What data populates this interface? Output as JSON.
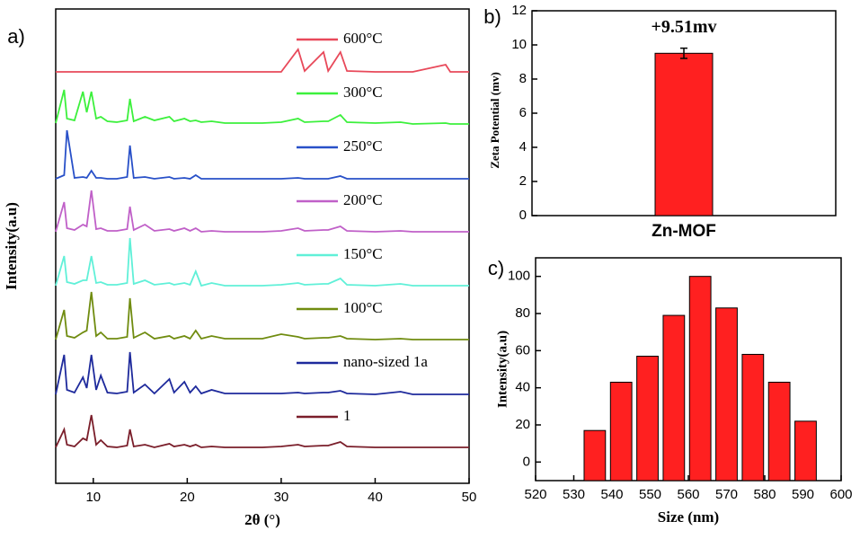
{
  "chart_data": [
    {
      "type": "line",
      "panel_label": "a)",
      "xlabel": "2θ (°)",
      "ylabel": "Intensity(a.u)",
      "xlim": [
        6,
        50
      ],
      "xticks": [
        10,
        20,
        30,
        40,
        50
      ],
      "x": [
        6,
        6.9,
        7.2,
        8,
        8.9,
        9.3,
        9.8,
        10.3,
        10.8,
        11.5,
        12.5,
        13.6,
        13.9,
        14.3,
        15.5,
        16.5,
        18.1,
        18.6,
        19.7,
        20.3,
        20.9,
        21.5,
        22.6,
        24,
        26,
        28,
        30,
        31.8,
        32.5,
        34.5,
        35,
        36.3,
        37,
        40,
        42.7,
        44,
        47.5,
        48,
        50
      ],
      "series": [
        {
          "name": "600°C",
          "color": "#e8495a",
          "values": [
            0,
            0,
            0,
            0,
            0,
            0,
            0,
            0,
            0,
            0,
            0,
            0,
            0,
            0,
            0,
            0,
            0,
            0,
            0,
            0,
            0,
            0,
            0,
            0,
            0,
            0,
            0,
            25,
            1,
            22,
            1,
            22,
            1,
            0,
            0,
            0,
            8,
            0,
            0
          ]
        },
        {
          "name": "300°C",
          "color": "#3cf03c",
          "values": [
            3,
            40,
            8,
            6,
            38,
            15,
            38,
            8,
            10,
            5,
            4,
            6,
            30,
            5,
            10,
            6,
            10,
            5,
            8,
            5,
            6,
            4,
            5,
            3,
            3,
            3,
            4,
            8,
            4,
            5,
            5,
            12,
            4,
            3,
            4,
            2,
            3,
            2,
            2
          ]
        },
        {
          "name": "250°C",
          "color": "#2850c8",
          "values": [
            1,
            5,
            55,
            2,
            3,
            2,
            10,
            2,
            2,
            1,
            1,
            3,
            38,
            2,
            3,
            1,
            3,
            1,
            2,
            1,
            5,
            1,
            1,
            1,
            1,
            1,
            1,
            2,
            1,
            1,
            1,
            4,
            1,
            1,
            1,
            1,
            1,
            1,
            1
          ]
        },
        {
          "name": "200°C",
          "color": "#c060c8",
          "values": [
            2,
            35,
            6,
            4,
            10,
            8,
            48,
            5,
            6,
            3,
            3,
            5,
            30,
            4,
            10,
            3,
            5,
            3,
            6,
            3,
            6,
            2,
            3,
            2,
            2,
            2,
            3,
            6,
            3,
            4,
            4,
            8,
            3,
            2,
            3,
            2,
            2,
            2,
            2
          ]
        },
        {
          "name": "150°C",
          "color": "#60f0d8",
          "values": [
            2,
            35,
            6,
            4,
            8,
            8,
            35,
            5,
            6,
            3,
            3,
            5,
            55,
            4,
            8,
            3,
            5,
            3,
            5,
            3,
            18,
            2,
            5,
            2,
            2,
            2,
            3,
            5,
            3,
            4,
            4,
            10,
            3,
            2,
            4,
            2,
            2,
            2,
            2
          ]
        },
        {
          "name": "100°C",
          "color": "#708c10",
          "values": [
            2,
            35,
            6,
            4,
            10,
            12,
            55,
            6,
            10,
            3,
            3,
            5,
            48,
            4,
            10,
            3,
            6,
            3,
            6,
            3,
            12,
            3,
            6,
            3,
            3,
            3,
            8,
            5,
            3,
            4,
            4,
            6,
            3,
            2,
            3,
            2,
            2,
            2,
            2
          ]
        },
        {
          "name": "nano-sized 1a",
          "color": "#1e2a9c",
          "values": [
            1,
            45,
            6,
            3,
            20,
            8,
            45,
            6,
            22,
            3,
            2,
            4,
            48,
            3,
            12,
            2,
            18,
            3,
            15,
            3,
            10,
            2,
            6,
            2,
            2,
            2,
            2,
            3,
            2,
            3,
            3,
            5,
            2,
            1,
            4,
            1,
            1,
            1,
            1
          ]
        },
        {
          "name": "1",
          "color": "#7a1e2a",
          "values": [
            2,
            22,
            5,
            3,
            12,
            10,
            38,
            5,
            10,
            3,
            2,
            4,
            22,
            3,
            5,
            2,
            6,
            3,
            5,
            3,
            5,
            2,
            3,
            2,
            2,
            2,
            3,
            5,
            3,
            4,
            4,
            8,
            3,
            2,
            2,
            2,
            2,
            2,
            2
          ]
        }
      ]
    },
    {
      "type": "bar",
      "panel_label": "b)",
      "ylabel": "Zeta Potential (mv)",
      "categories": [
        "Zn-MOF"
      ],
      "values": [
        9.51
      ],
      "value_labels": [
        "+9.51mv"
      ],
      "errors": [
        0.3
      ],
      "color": "#ff2020",
      "ylim": [
        0,
        12
      ],
      "yticks": [
        0,
        2,
        4,
        6,
        8,
        10,
        12
      ]
    },
    {
      "type": "histbar",
      "panel_label": "c)",
      "xlabel": "Size (nm)",
      "ylabel": "Intensity(a.u)",
      "x": [
        535.5,
        542.4,
        549.3,
        556.2,
        563.1,
        570,
        576.9,
        583.8,
        590.7
      ],
      "values": [
        17,
        43,
        57,
        79,
        100,
        83,
        58,
        43,
        22
      ],
      "color": "#ff2020",
      "xlim": [
        520,
        600
      ],
      "xticks": [
        520,
        530,
        540,
        550,
        560,
        570,
        580,
        590,
        600
      ],
      "ylim": [
        -10,
        110
      ],
      "yticks": [
        0,
        20,
        40,
        60,
        80,
        100
      ]
    }
  ]
}
